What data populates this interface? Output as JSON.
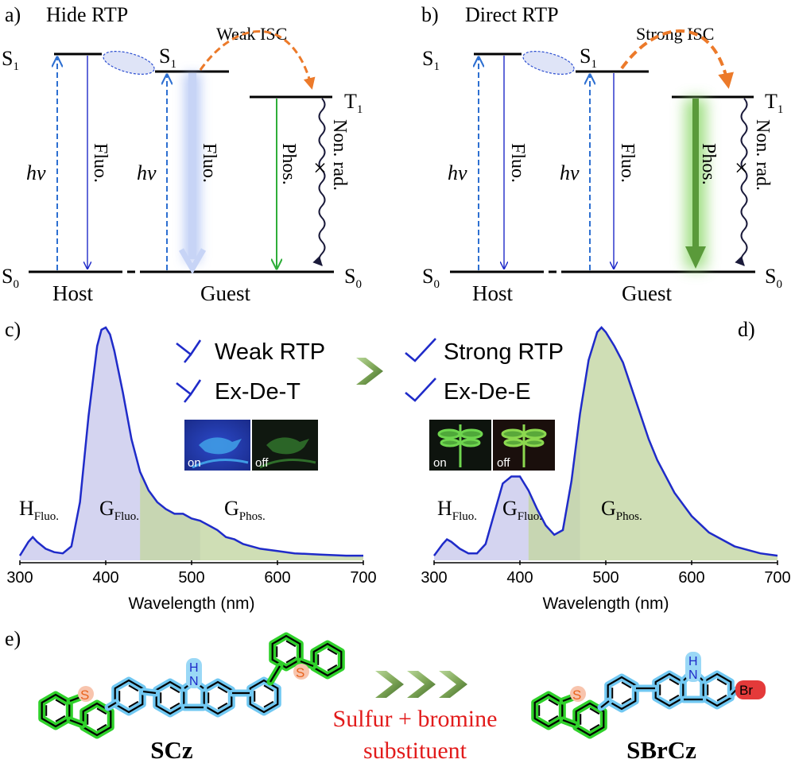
{
  "panel_a": {
    "label": "a)",
    "title": "Hide RTP",
    "isc": "Weak ISC",
    "s1_host": "S",
    "s1_host_sub": "1",
    "s1_guest": "S",
    "s1_guest_sub": "1",
    "t1": "T",
    "t1_sub": "1",
    "s0_left": "S",
    "s0_left_sub": "0",
    "s0_right": "S",
    "s0_right_sub": "0",
    "hv1": "hv",
    "hv2": "hv",
    "fluo_host": "Fluo.",
    "fluo_guest": "Fluo.",
    "phos": "Phos.",
    "nonrad": "Non. rad.",
    "host": "Host",
    "guest": "Guest"
  },
  "panel_b": {
    "label": "b)",
    "title": "Direct RTP",
    "isc": "Strong ISC",
    "s1_host": "S",
    "s1_host_sub": "1",
    "s1_guest": "S",
    "s1_guest_sub": "1",
    "t1": "T",
    "t1_sub": "1",
    "s0_left": "S",
    "s0_left_sub": "0",
    "s0_right": "S",
    "s0_right_sub": "0",
    "hv1": "hv",
    "hv2": "hv",
    "fluo_host": "Fluo.",
    "fluo_guest": "Fluo.",
    "phos": "Phos.",
    "nonrad": "Non. rad.",
    "host": "Host",
    "guest": "Guest"
  },
  "panel_c": {
    "label": "c)",
    "h_fluo": "H",
    "h_fluo_sub": "Fluo.",
    "g_fluo": "G",
    "g_fluo_sub": "Fluo.",
    "g_phos": "G",
    "g_phos_sub": "Phos.",
    "photo_on": "on",
    "photo_off": "off"
  },
  "panel_d": {
    "label": "d)",
    "h_fluo": "H",
    "h_fluo_sub": "Fluo.",
    "g_fluo": "G",
    "g_fluo_sub": "Fluo.",
    "g_phos": "G",
    "g_phos_sub": "Phos.",
    "photo_on": "on",
    "photo_off": "off"
  },
  "legend": {
    "weak_rtp": "Weak RTP",
    "ex_de_t": "Ex-De-T",
    "strong_rtp": "Strong RTP",
    "ex_de_e": "Ex-De-E"
  },
  "panel_e": {
    "label": "e)",
    "mol_left": "SCz",
    "mol_right": "SBrCz",
    "change_line1": "Sulfur + bromine",
    "change_line2": "substituent",
    "atom_s": "S",
    "atom_n": "N",
    "atom_h": "H",
    "atom_br": "Br"
  },
  "colors": {
    "spectrum_line": "#1f2bc9",
    "fluo_fill": "#c9c9ec",
    "phos_fill": "#c3d6a2",
    "dashed_arrow": "#2d6fd1",
    "isc_arrow": "#ec7a2a",
    "phos_arrow": "#2fae3a",
    "ring_green": "#2fd12a",
    "ring_blue": "#71c8f2",
    "bromine_red": "#e43a3a",
    "sulfur_orange": "#f08a5a"
  },
  "chart_data": [
    {
      "type": "area",
      "xlabel": "Wavelength (nm)",
      "xticks": [
        300,
        400,
        500,
        600,
        700
      ],
      "xlim": [
        300,
        700
      ],
      "series": [
        {
          "x": [
            300,
            310,
            315,
            320,
            330,
            340,
            350,
            360,
            370,
            380,
            390,
            395,
            400,
            405,
            410,
            420,
            430,
            440,
            450,
            460,
            470,
            480,
            490,
            500,
            510,
            520,
            530,
            540,
            550,
            560,
            580,
            600,
            620,
            650,
            680,
            700
          ],
          "values": [
            0.02,
            0.08,
            0.1,
            0.08,
            0.05,
            0.035,
            0.03,
            0.06,
            0.25,
            0.62,
            0.92,
            0.99,
            1.0,
            0.97,
            0.9,
            0.72,
            0.52,
            0.38,
            0.3,
            0.25,
            0.22,
            0.2,
            0.2,
            0.18,
            0.17,
            0.15,
            0.13,
            0.1,
            0.09,
            0.07,
            0.05,
            0.04,
            0.03,
            0.025,
            0.02,
            0.02
          ]
        }
      ]
    },
    {
      "type": "area",
      "xlabel": "Wavelength (nm)",
      "xticks": [
        300,
        400,
        500,
        600,
        700
      ],
      "xlim": [
        300,
        700
      ],
      "series": [
        {
          "x": [
            300,
            310,
            315,
            320,
            330,
            340,
            350,
            360,
            370,
            380,
            390,
            400,
            410,
            420,
            430,
            440,
            450,
            460,
            470,
            480,
            490,
            495,
            500,
            510,
            520,
            530,
            540,
            550,
            560,
            580,
            600,
            620,
            650,
            680,
            700
          ],
          "values": [
            0.02,
            0.07,
            0.09,
            0.08,
            0.05,
            0.03,
            0.03,
            0.07,
            0.2,
            0.33,
            0.36,
            0.36,
            0.3,
            0.22,
            0.15,
            0.11,
            0.13,
            0.34,
            0.63,
            0.86,
            0.98,
            1.0,
            0.98,
            0.92,
            0.85,
            0.74,
            0.63,
            0.52,
            0.43,
            0.29,
            0.19,
            0.12,
            0.06,
            0.03,
            0.02
          ]
        }
      ]
    }
  ]
}
